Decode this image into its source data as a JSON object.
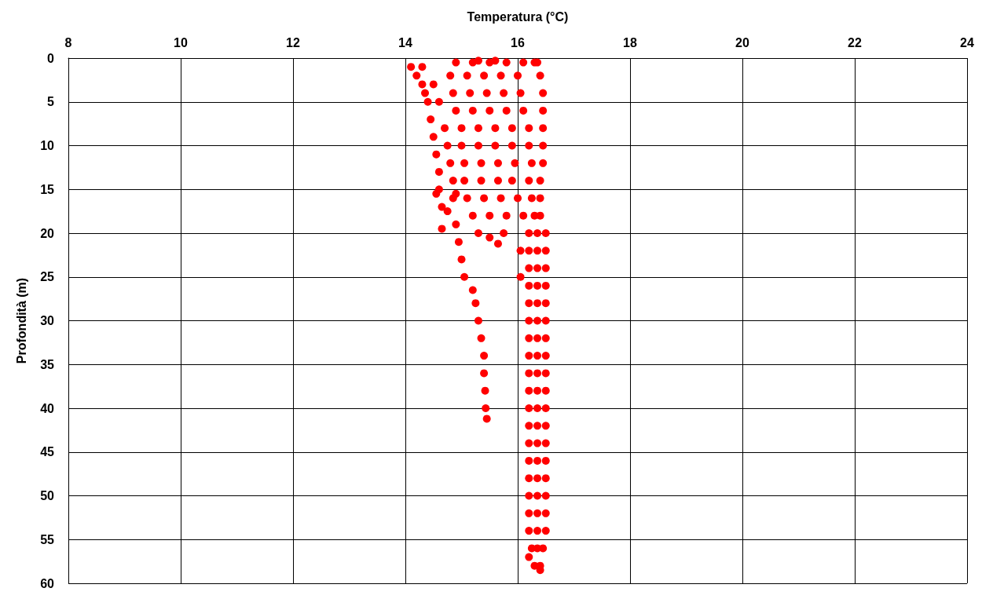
{
  "chart_data": {
    "type": "scatter",
    "xlabel": "Temperatura (°C)",
    "ylabel": "Profondità (m)",
    "xlim": [
      8,
      24
    ],
    "xticks": [
      8,
      10,
      12,
      14,
      16,
      18,
      20,
      22,
      24
    ],
    "ylim": [
      60,
      0
    ],
    "yticks": [
      0,
      5,
      10,
      15,
      20,
      25,
      30,
      35,
      40,
      45,
      50,
      55,
      60
    ],
    "grid": true,
    "marker": "circle",
    "series": [
      {
        "color": "#ff0000",
        "x": [
          14.1,
          14.2,
          14.3,
          14.35,
          14.4,
          14.45,
          14.5,
          14.55,
          14.6,
          14.6,
          14.65,
          14.65,
          14.85,
          14.9,
          14.95,
          15.0,
          15.05,
          15.2,
          15.25,
          15.3,
          15.35,
          15.4,
          15.4,
          15.42,
          15.43,
          15.45,
          14.3,
          14.5,
          14.6,
          14.7,
          14.75,
          14.8,
          14.85,
          14.9,
          14.55,
          14.75,
          14.9,
          15.2,
          15.5,
          15.8,
          16.1,
          16.35,
          14.8,
          15.1,
          15.4,
          15.7,
          16.0,
          16.4,
          14.85,
          15.15,
          15.45,
          15.75,
          16.05,
          16.45,
          14.9,
          15.2,
          15.5,
          15.8,
          16.1,
          16.45,
          15.0,
          15.3,
          15.6,
          15.9,
          16.2,
          16.45,
          15.0,
          15.3,
          15.6,
          15.9,
          16.2,
          16.45,
          15.05,
          15.35,
          15.65,
          15.95,
          16.25,
          16.45,
          15.05,
          15.35,
          15.65,
          15.9,
          16.2,
          16.4,
          15.1,
          15.4,
          15.7,
          16.0,
          16.25,
          16.4,
          15.2,
          15.5,
          15.8,
          16.1,
          16.3,
          16.4,
          16.2,
          16.35,
          16.5,
          16.2,
          16.35,
          16.5,
          16.2,
          16.35,
          16.5,
          16.2,
          16.35,
          16.5,
          16.2,
          16.35,
          16.5,
          16.2,
          16.35,
          16.5,
          16.2,
          16.35,
          16.5,
          16.2,
          16.35,
          16.5,
          16.2,
          16.35,
          16.5,
          16.2,
          16.35,
          16.5,
          16.2,
          16.35,
          16.5,
          16.2,
          16.35,
          16.5,
          16.2,
          16.35,
          16.5,
          16.2,
          16.35,
          16.5,
          16.2,
          16.35,
          16.5,
          16.2,
          16.35,
          16.5,
          16.2,
          16.35,
          16.5,
          16.2,
          16.35,
          16.5,
          16.25,
          16.35,
          16.45,
          16.3,
          16.4,
          15.3,
          15.5,
          15.65,
          15.75,
          16.05,
          16.05,
          16.2,
          16.4,
          15.3,
          15.6,
          16.3
        ],
        "values": [
          1,
          2,
          3,
          4,
          5,
          7,
          9,
          11,
          13,
          15,
          17,
          19.5,
          16,
          19,
          21,
          23,
          25,
          26.5,
          28,
          30,
          32,
          34,
          36,
          38,
          40,
          41.2,
          1,
          3,
          5,
          8,
          10,
          12,
          14,
          15.5,
          15.5,
          17.5,
          0.5,
          0.5,
          0.5,
          0.5,
          0.5,
          0.5,
          2,
          2,
          2,
          2,
          2,
          2,
          4,
          4,
          4,
          4,
          4,
          4,
          6,
          6,
          6,
          6,
          6,
          6,
          8,
          8,
          8,
          8,
          8,
          8,
          10,
          10,
          10,
          10,
          10,
          10,
          12,
          12,
          12,
          12,
          12,
          12,
          14,
          14,
          14,
          14,
          14,
          14,
          16,
          16,
          16,
          16,
          16,
          16,
          18,
          18,
          18,
          18,
          18,
          18,
          20,
          20,
          20,
          22,
          22,
          22,
          24,
          24,
          24,
          26,
          26,
          26,
          28,
          28,
          28,
          30,
          30,
          30,
          32,
          32,
          32,
          34,
          34,
          34,
          36,
          36,
          36,
          38,
          38,
          38,
          40,
          40,
          40,
          42,
          42,
          42,
          44,
          44,
          44,
          46,
          46,
          46,
          48,
          48,
          48,
          50,
          50,
          50,
          52,
          52,
          52,
          54,
          54,
          54,
          56,
          56,
          56,
          58,
          58,
          20,
          20.5,
          21.2,
          20,
          22,
          25,
          57,
          58.5,
          0.3,
          0.3,
          0.5
        ]
      }
    ]
  }
}
